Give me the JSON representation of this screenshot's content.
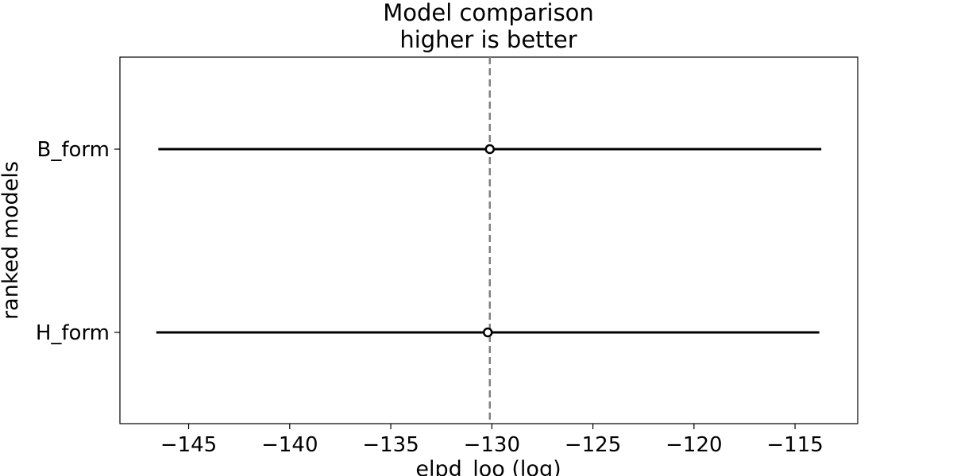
{
  "chart_data": {
    "type": "forest",
    "title": "Model comparison",
    "subtitle": "higher is better",
    "xlabel": "elpd_loo (log)",
    "ylabel": "ranked models",
    "xlim": [
      -148.4,
      -111.9
    ],
    "xticks": [
      -145,
      -140,
      -135,
      -130,
      -125,
      -120,
      -115
    ],
    "xtick_labels": [
      "−145",
      "−140",
      "−135",
      "−130",
      "−125",
      "−120",
      "−115"
    ],
    "reference_line": -130.1,
    "grid": false,
    "legend": "none",
    "models": [
      {
        "name": "B_form",
        "elpd": -130.1,
        "lower": -146.5,
        "upper": -113.7
      },
      {
        "name": "H_form",
        "elpd": -130.2,
        "lower": -146.6,
        "upper": -113.8
      }
    ],
    "colors": {
      "interval": "#000000",
      "reference": "#808080",
      "marker_fill": "#ffffff"
    }
  }
}
